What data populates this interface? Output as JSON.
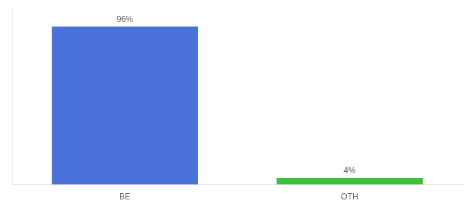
{
  "chart_data": {
    "type": "bar",
    "categories": [
      "BE",
      "OTH"
    ],
    "values": [
      96,
      4
    ],
    "value_labels": [
      "96%",
      "4%"
    ],
    "colors": [
      "#4a72d9",
      "#3dbf3d"
    ],
    "ylim": [
      0,
      108
    ],
    "data_labels": true,
    "tick_labels": "x",
    "grid": false
  }
}
